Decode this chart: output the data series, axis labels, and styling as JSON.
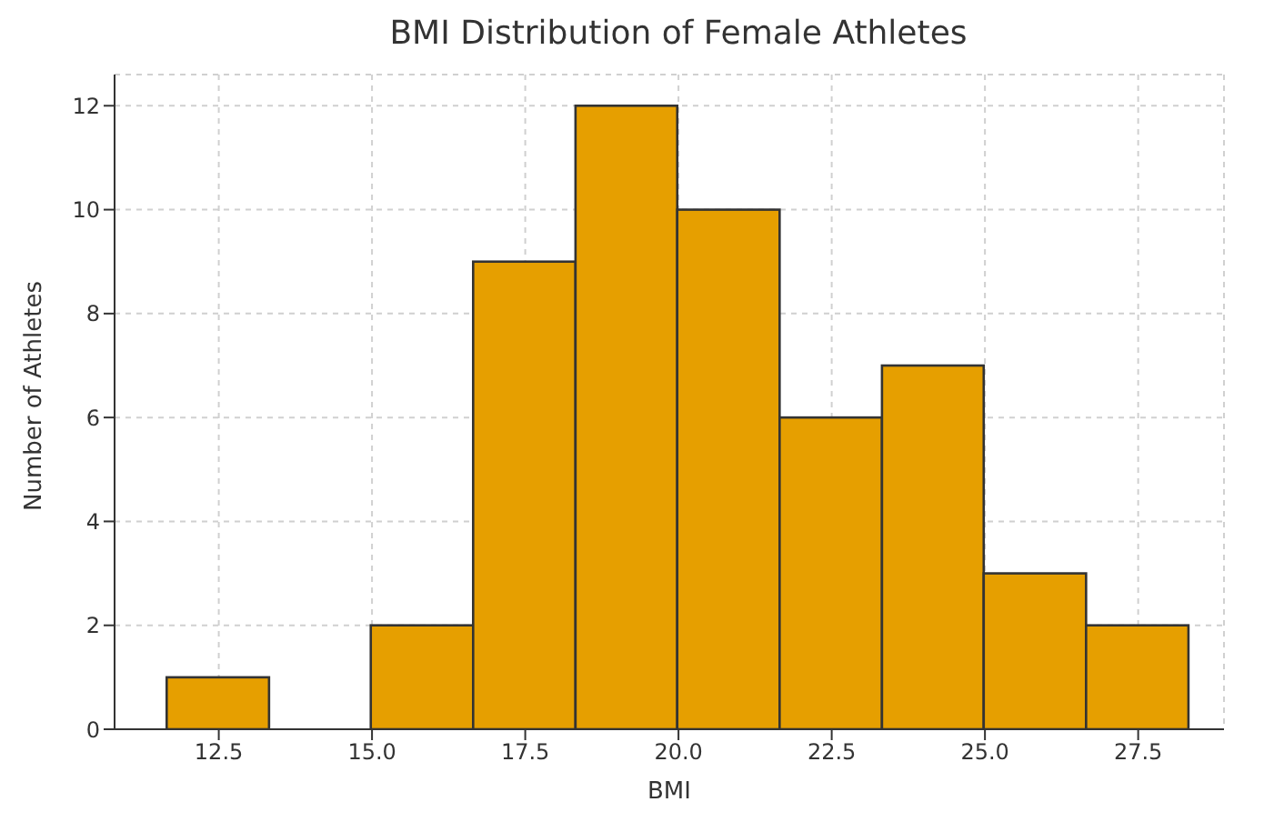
{
  "chart_data": {
    "type": "histogram",
    "title": "BMI Distribution of Female Athletes",
    "xlabel": "BMI",
    "ylabel": "Number of Athletes",
    "bins": [
      11.65,
      13.32,
      14.98,
      16.65,
      18.32,
      19.98,
      21.65,
      23.32,
      24.98,
      26.65,
      28.32
    ],
    "values": [
      1,
      0,
      2,
      9,
      12,
      10,
      6,
      7,
      3,
      2
    ],
    "color": "#e69f00",
    "xlim": [
      10.8,
      28.9
    ],
    "xticks": [
      {
        "value": 12.5,
        "label": "12.5"
      },
      {
        "value": 15,
        "label": "15.0"
      },
      {
        "value": 17.5,
        "label": "17.5"
      },
      {
        "value": 20,
        "label": "20.0"
      },
      {
        "value": 22.5,
        "label": "22.5"
      },
      {
        "value": 25,
        "label": "25.0"
      },
      {
        "value": 27.5,
        "label": "27.5"
      }
    ],
    "ylim": [
      0,
      12.6
    ],
    "yticks": [
      0,
      2,
      4,
      6,
      8,
      10,
      12
    ],
    "grid": true
  }
}
